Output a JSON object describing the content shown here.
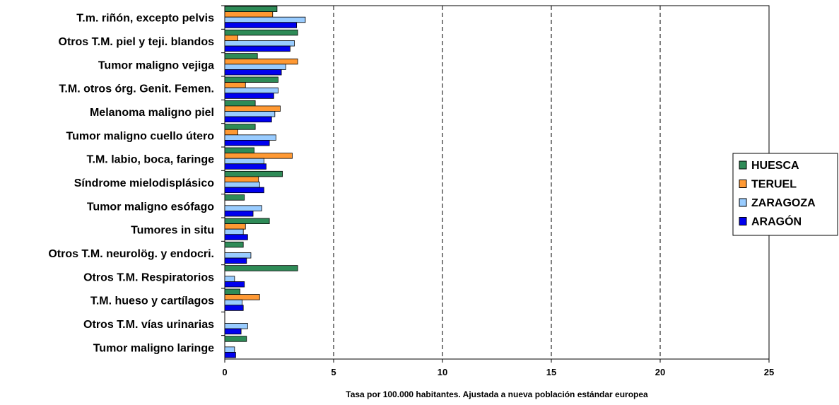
{
  "chart_data": {
    "type": "bar",
    "orientation": "horizontal",
    "categories": [
      "T.m. riñón, excepto pelvis",
      "Otros T.M. piel y teji. blandos",
      "Tumor maligno vejiga",
      "T.M. otros órg. Genit. Femen.",
      "Melanoma maligno piel",
      "Tumor maligno cuello útero",
      "T.M. labio, boca, faringe",
      "Síndrome mielodisplásico",
      "Tumor maligno esófago",
      "Tumores in situ",
      "Otros T.M. neurolög. y endocri.",
      "Otros T.M. Respiratorios",
      "T.M.  hueso y cartílagos",
      "Otros T.M.  vías urinarias",
      "Tumor maligno laringe"
    ],
    "series": [
      {
        "name": "HUESCA",
        "color": "#2e8b57",
        "values": [
          2.4,
          3.35,
          1.5,
          2.45,
          1.4,
          1.4,
          1.35,
          2.65,
          0.9,
          2.05,
          0.85,
          3.35,
          0.7,
          0.0,
          1.0
        ]
      },
      {
        "name": "TERUEL",
        "color": "#ff9933",
        "values": [
          2.2,
          0.6,
          3.35,
          0.95,
          2.55,
          0.6,
          3.1,
          1.55,
          0.0,
          0.95,
          0.0,
          0.0,
          1.6,
          0.0,
          0.0
        ]
      },
      {
        "name": "ZARAGOZA",
        "color": "#99ccff",
        "values": [
          3.7,
          3.2,
          2.8,
          2.45,
          2.3,
          2.35,
          1.8,
          1.6,
          1.7,
          0.85,
          1.2,
          0.45,
          0.8,
          1.05,
          0.45
        ]
      },
      {
        "name": "ARAGÓN",
        "color": "#0000ee",
        "values": [
          3.3,
          3.0,
          2.6,
          2.25,
          2.15,
          2.05,
          1.9,
          1.8,
          1.3,
          1.05,
          1.0,
          0.9,
          0.85,
          0.75,
          0.5
        ]
      }
    ],
    "xlabel": "Tasa por 100.000 habitantes. Ajustada a nueva población estándar europea",
    "ylabel": "",
    "title": "",
    "xlim": [
      0,
      25
    ],
    "xticks": [
      "0",
      "5",
      "10",
      "15",
      "20",
      "25"
    ],
    "grid": "vertical dashed",
    "legend_position": "right"
  }
}
